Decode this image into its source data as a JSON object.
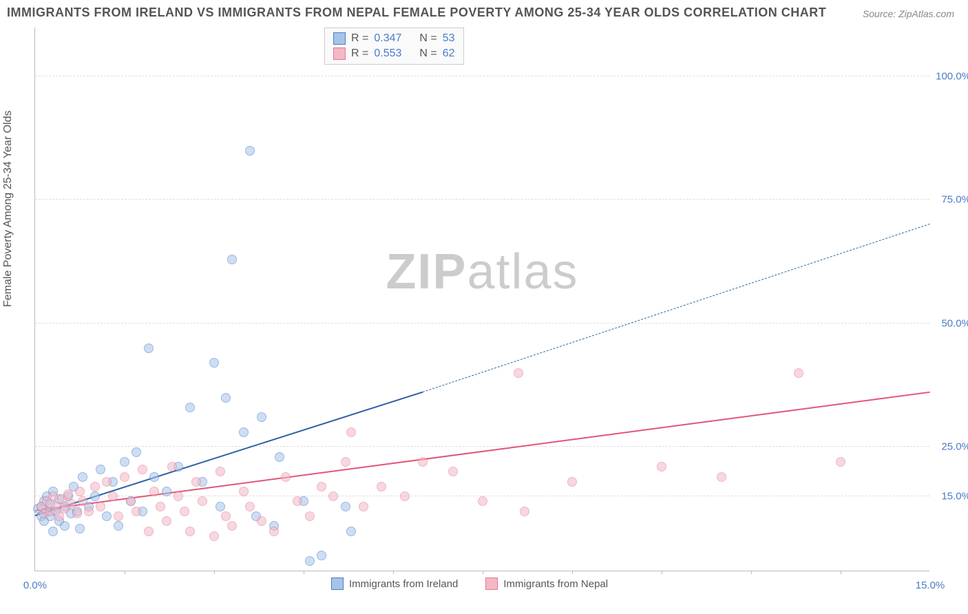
{
  "title": "IMMIGRANTS FROM IRELAND VS IMMIGRANTS FROM NEPAL FEMALE POVERTY AMONG 25-34 YEAR OLDS CORRELATION CHART",
  "source": "Source: ZipAtlas.com",
  "watermark": {
    "part1": "ZIP",
    "part2": "atlas"
  },
  "yaxis_title": "Female Poverty Among 25-34 Year Olds",
  "chart": {
    "type": "scatter",
    "background_color": "#ffffff",
    "grid_color": "#dddddd",
    "axis_color": "#bbbbbb",
    "tick_label_color": "#4a7bc8",
    "tick_fontsize": 15,
    "xlim": [
      0,
      15
    ],
    "ylim": [
      0,
      110
    ],
    "x_ticks": [
      {
        "v": 0,
        "label": "0.0%"
      },
      {
        "v": 15,
        "label": "15.0%"
      }
    ],
    "x_minor_ticks": [
      1.5,
      3,
      4.5,
      6,
      7.5,
      9,
      10.5,
      12,
      13.5
    ],
    "y_ticks": [
      {
        "v": 15,
        "label": "15.0%"
      },
      {
        "v": 25,
        "label": "25.0%"
      },
      {
        "v": 50,
        "label": "50.0%"
      },
      {
        "v": 75,
        "label": "75.0%"
      },
      {
        "v": 100,
        "label": "100.0%"
      }
    ],
    "marker_size": 14,
    "marker_opacity": 0.55
  },
  "series": [
    {
      "name": "Immigrants from Ireland",
      "fill_color": "#a7c4e8",
      "stroke_color": "#4a7bc8",
      "line_color": "#2e5fa8",
      "R": "0.347",
      "N": "53",
      "trend": {
        "x1": 0,
        "y1": 11,
        "x2": 6.5,
        "y2": 36,
        "dash_to_x": 15,
        "dash_to_y": 70,
        "width": 2.5
      },
      "points": [
        [
          0.05,
          12.5
        ],
        [
          0.1,
          13
        ],
        [
          0.1,
          11
        ],
        [
          0.15,
          14
        ],
        [
          0.15,
          10
        ],
        [
          0.2,
          12
        ],
        [
          0.2,
          15
        ],
        [
          0.25,
          11
        ],
        [
          0.25,
          13.5
        ],
        [
          0.3,
          8
        ],
        [
          0.3,
          16
        ],
        [
          0.35,
          12
        ],
        [
          0.4,
          10
        ],
        [
          0.4,
          14.5
        ],
        [
          0.5,
          13
        ],
        [
          0.5,
          9
        ],
        [
          0.55,
          15
        ],
        [
          0.6,
          11.5
        ],
        [
          0.65,
          17
        ],
        [
          0.7,
          12
        ],
        [
          0.75,
          8.5
        ],
        [
          0.8,
          19
        ],
        [
          0.9,
          13
        ],
        [
          1.0,
          15
        ],
        [
          1.1,
          20.5
        ],
        [
          1.2,
          11
        ],
        [
          1.3,
          18
        ],
        [
          1.4,
          9
        ],
        [
          1.5,
          22
        ],
        [
          1.6,
          14
        ],
        [
          1.7,
          24
        ],
        [
          1.8,
          12
        ],
        [
          1.9,
          45
        ],
        [
          2.0,
          19
        ],
        [
          2.2,
          16
        ],
        [
          2.4,
          21
        ],
        [
          2.6,
          33
        ],
        [
          2.8,
          18
        ],
        [
          3.0,
          42
        ],
        [
          3.1,
          13
        ],
        [
          3.2,
          35
        ],
        [
          3.3,
          63
        ],
        [
          3.5,
          28
        ],
        [
          3.6,
          85
        ],
        [
          3.7,
          11
        ],
        [
          3.8,
          31
        ],
        [
          4.0,
          9
        ],
        [
          4.1,
          23
        ],
        [
          4.5,
          14
        ],
        [
          4.6,
          2
        ],
        [
          4.8,
          3
        ],
        [
          5.2,
          13
        ],
        [
          5.3,
          8
        ]
      ]
    },
    {
      "name": "Immigrants from Nepal",
      "fill_color": "#f4b8c5",
      "stroke_color": "#e27a92",
      "line_color": "#e05577",
      "R": "0.553",
      "N": "62",
      "trend": {
        "x1": 0,
        "y1": 12,
        "x2": 15,
        "y2": 36,
        "width": 2.5
      },
      "points": [
        [
          0.1,
          13
        ],
        [
          0.15,
          11.5
        ],
        [
          0.2,
          14
        ],
        [
          0.25,
          12
        ],
        [
          0.3,
          15
        ],
        [
          0.35,
          13
        ],
        [
          0.4,
          11
        ],
        [
          0.45,
          14.5
        ],
        [
          0.5,
          12.5
        ],
        [
          0.55,
          15.5
        ],
        [
          0.6,
          13.5
        ],
        [
          0.7,
          11.5
        ],
        [
          0.75,
          16
        ],
        [
          0.8,
          14
        ],
        [
          0.9,
          12
        ],
        [
          1.0,
          17
        ],
        [
          1.1,
          13
        ],
        [
          1.2,
          18
        ],
        [
          1.3,
          15
        ],
        [
          1.4,
          11
        ],
        [
          1.5,
          19
        ],
        [
          1.6,
          14
        ],
        [
          1.7,
          12
        ],
        [
          1.8,
          20.5
        ],
        [
          1.9,
          8
        ],
        [
          2.0,
          16
        ],
        [
          2.1,
          13
        ],
        [
          2.2,
          10
        ],
        [
          2.3,
          21
        ],
        [
          2.4,
          15
        ],
        [
          2.5,
          12
        ],
        [
          2.6,
          8
        ],
        [
          2.7,
          18
        ],
        [
          2.8,
          14
        ],
        [
          3.0,
          7
        ],
        [
          3.1,
          20
        ],
        [
          3.2,
          11
        ],
        [
          3.3,
          9
        ],
        [
          3.5,
          16
        ],
        [
          3.6,
          13
        ],
        [
          3.8,
          10
        ],
        [
          4.0,
          8
        ],
        [
          4.2,
          19
        ],
        [
          4.4,
          14
        ],
        [
          4.6,
          11
        ],
        [
          4.8,
          17
        ],
        [
          5.0,
          15
        ],
        [
          5.2,
          22
        ],
        [
          5.3,
          28
        ],
        [
          5.5,
          13
        ],
        [
          5.8,
          17
        ],
        [
          6.2,
          15
        ],
        [
          6.5,
          22
        ],
        [
          7.0,
          20
        ],
        [
          7.5,
          14
        ],
        [
          8.1,
          40
        ],
        [
          8.2,
          12
        ],
        [
          9.0,
          18
        ],
        [
          10.5,
          21
        ],
        [
          11.5,
          19
        ],
        [
          12.8,
          40
        ],
        [
          13.5,
          22
        ]
      ]
    }
  ],
  "legend_top": {
    "r_label": "R =",
    "n_label": "N ="
  },
  "legend_bottom_labels": [
    "Immigrants from Ireland",
    "Immigrants from Nepal"
  ]
}
